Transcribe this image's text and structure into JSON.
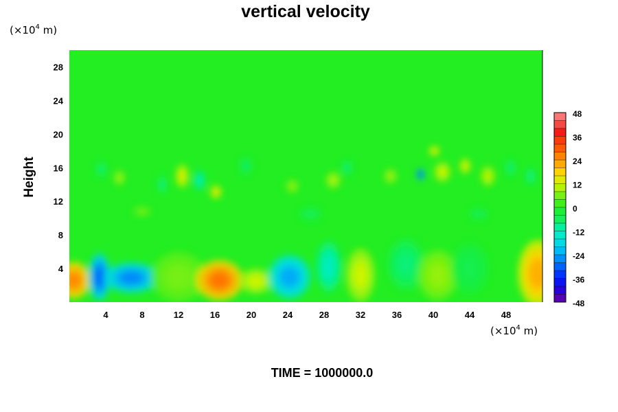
{
  "chart_data": {
    "type": "heatmap",
    "title": "vertical velocity",
    "ylabel": "Height",
    "xunit": "(×10",
    "xunit_exp": "4",
    "xunit_tail": " m)",
    "yunit": "(×10",
    "yunit_exp": "4",
    "yunit_tail": " m)",
    "xlim": [
      0,
      52
    ],
    "ylim": [
      0,
      30
    ],
    "xticks": [
      "4",
      "8",
      "12",
      "16",
      "20",
      "24",
      "28",
      "32",
      "36",
      "40",
      "44",
      "48"
    ],
    "yticks": [
      "4",
      "8",
      "12",
      "16",
      "20",
      "24",
      "28"
    ],
    "colorbar": {
      "ticks": [
        "48",
        "36",
        "24",
        "12",
        "0",
        "-12",
        "-24",
        "-36",
        "-48"
      ],
      "range": [
        -48,
        48
      ],
      "levels": 24
    },
    "features": [
      {
        "x": 0.5,
        "y": 2.6,
        "value": 26,
        "rx": 1.8,
        "ry": 2.2
      },
      {
        "x": 3.3,
        "y": 3.0,
        "value": -30,
        "rx": 1.2,
        "ry": 2.8
      },
      {
        "x": 6.8,
        "y": 2.9,
        "value": -27,
        "rx": 3.0,
        "ry": 1.8
      },
      {
        "x": 12.0,
        "y": 3.0,
        "value": 6,
        "rx": 3.0,
        "ry": 3.0
      },
      {
        "x": 16.5,
        "y": 2.6,
        "value": 28,
        "rx": 2.6,
        "ry": 2.4
      },
      {
        "x": 20.5,
        "y": 2.5,
        "value": 12,
        "rx": 1.8,
        "ry": 1.5
      },
      {
        "x": 24.2,
        "y": 3.0,
        "value": -24,
        "rx": 2.3,
        "ry": 2.6
      },
      {
        "x": 28.5,
        "y": 4.2,
        "value": -13,
        "rx": 1.4,
        "ry": 3.0
      },
      {
        "x": 32.0,
        "y": 3.2,
        "value": 12,
        "rx": 1.6,
        "ry": 3.2
      },
      {
        "x": 37.0,
        "y": 4.5,
        "value": -8,
        "rx": 2.0,
        "ry": 3.0
      },
      {
        "x": 40.5,
        "y": 3.2,
        "value": 8,
        "rx": 2.2,
        "ry": 3.0
      },
      {
        "x": 44.0,
        "y": 4.0,
        "value": -5,
        "rx": 2.0,
        "ry": 3.0
      },
      {
        "x": 51.5,
        "y": 3.4,
        "value": 22,
        "rx": 2.2,
        "ry": 4.0
      },
      {
        "x": 12.4,
        "y": 15.0,
        "value": 14,
        "rx": 0.7,
        "ry": 1.4
      },
      {
        "x": 14.3,
        "y": 14.5,
        "value": -13,
        "rx": 0.6,
        "ry": 1.2
      },
      {
        "x": 16.1,
        "y": 13.1,
        "value": 16,
        "rx": 0.6,
        "ry": 0.8
      },
      {
        "x": 10.2,
        "y": 14.0,
        "value": -9,
        "rx": 0.5,
        "ry": 1.0
      },
      {
        "x": 3.5,
        "y": 15.8,
        "value": -8,
        "rx": 0.6,
        "ry": 0.9
      },
      {
        "x": 5.5,
        "y": 14.8,
        "value": 9,
        "rx": 0.6,
        "ry": 0.9
      },
      {
        "x": 19.4,
        "y": 16.2,
        "value": -7,
        "rx": 0.7,
        "ry": 1.0
      },
      {
        "x": 24.5,
        "y": 13.8,
        "value": 8,
        "rx": 0.7,
        "ry": 0.8
      },
      {
        "x": 29.0,
        "y": 14.5,
        "value": 10,
        "rx": 0.8,
        "ry": 1.0
      },
      {
        "x": 30.5,
        "y": 16.0,
        "value": -8,
        "rx": 0.6,
        "ry": 0.9
      },
      {
        "x": 35.3,
        "y": 15.0,
        "value": 9,
        "rx": 0.7,
        "ry": 0.9
      },
      {
        "x": 38.6,
        "y": 15.2,
        "value": -34,
        "rx": 0.4,
        "ry": 0.7
      },
      {
        "x": 40.1,
        "y": 18.0,
        "value": 15,
        "rx": 0.6,
        "ry": 0.6
      },
      {
        "x": 41.0,
        "y": 15.5,
        "value": 12,
        "rx": 0.9,
        "ry": 1.2
      },
      {
        "x": 43.5,
        "y": 16.2,
        "value": 14,
        "rx": 0.6,
        "ry": 0.9
      },
      {
        "x": 46.0,
        "y": 15.0,
        "value": 11,
        "rx": 0.8,
        "ry": 1.2
      },
      {
        "x": 48.5,
        "y": 16.0,
        "value": -8,
        "rx": 0.6,
        "ry": 1.0
      },
      {
        "x": 50.7,
        "y": 15.0,
        "value": -10,
        "rx": 0.5,
        "ry": 1.0
      },
      {
        "x": 26.5,
        "y": 10.5,
        "value": -6,
        "rx": 1.2,
        "ry": 0.8
      },
      {
        "x": 8.0,
        "y": 10.8,
        "value": 6,
        "rx": 1.0,
        "ry": 0.6
      },
      {
        "x": 45.0,
        "y": 10.5,
        "value": -6,
        "rx": 1.0,
        "ry": 0.7
      }
    ]
  },
  "footer": {
    "time_label": "TIME = 1000000.0"
  }
}
